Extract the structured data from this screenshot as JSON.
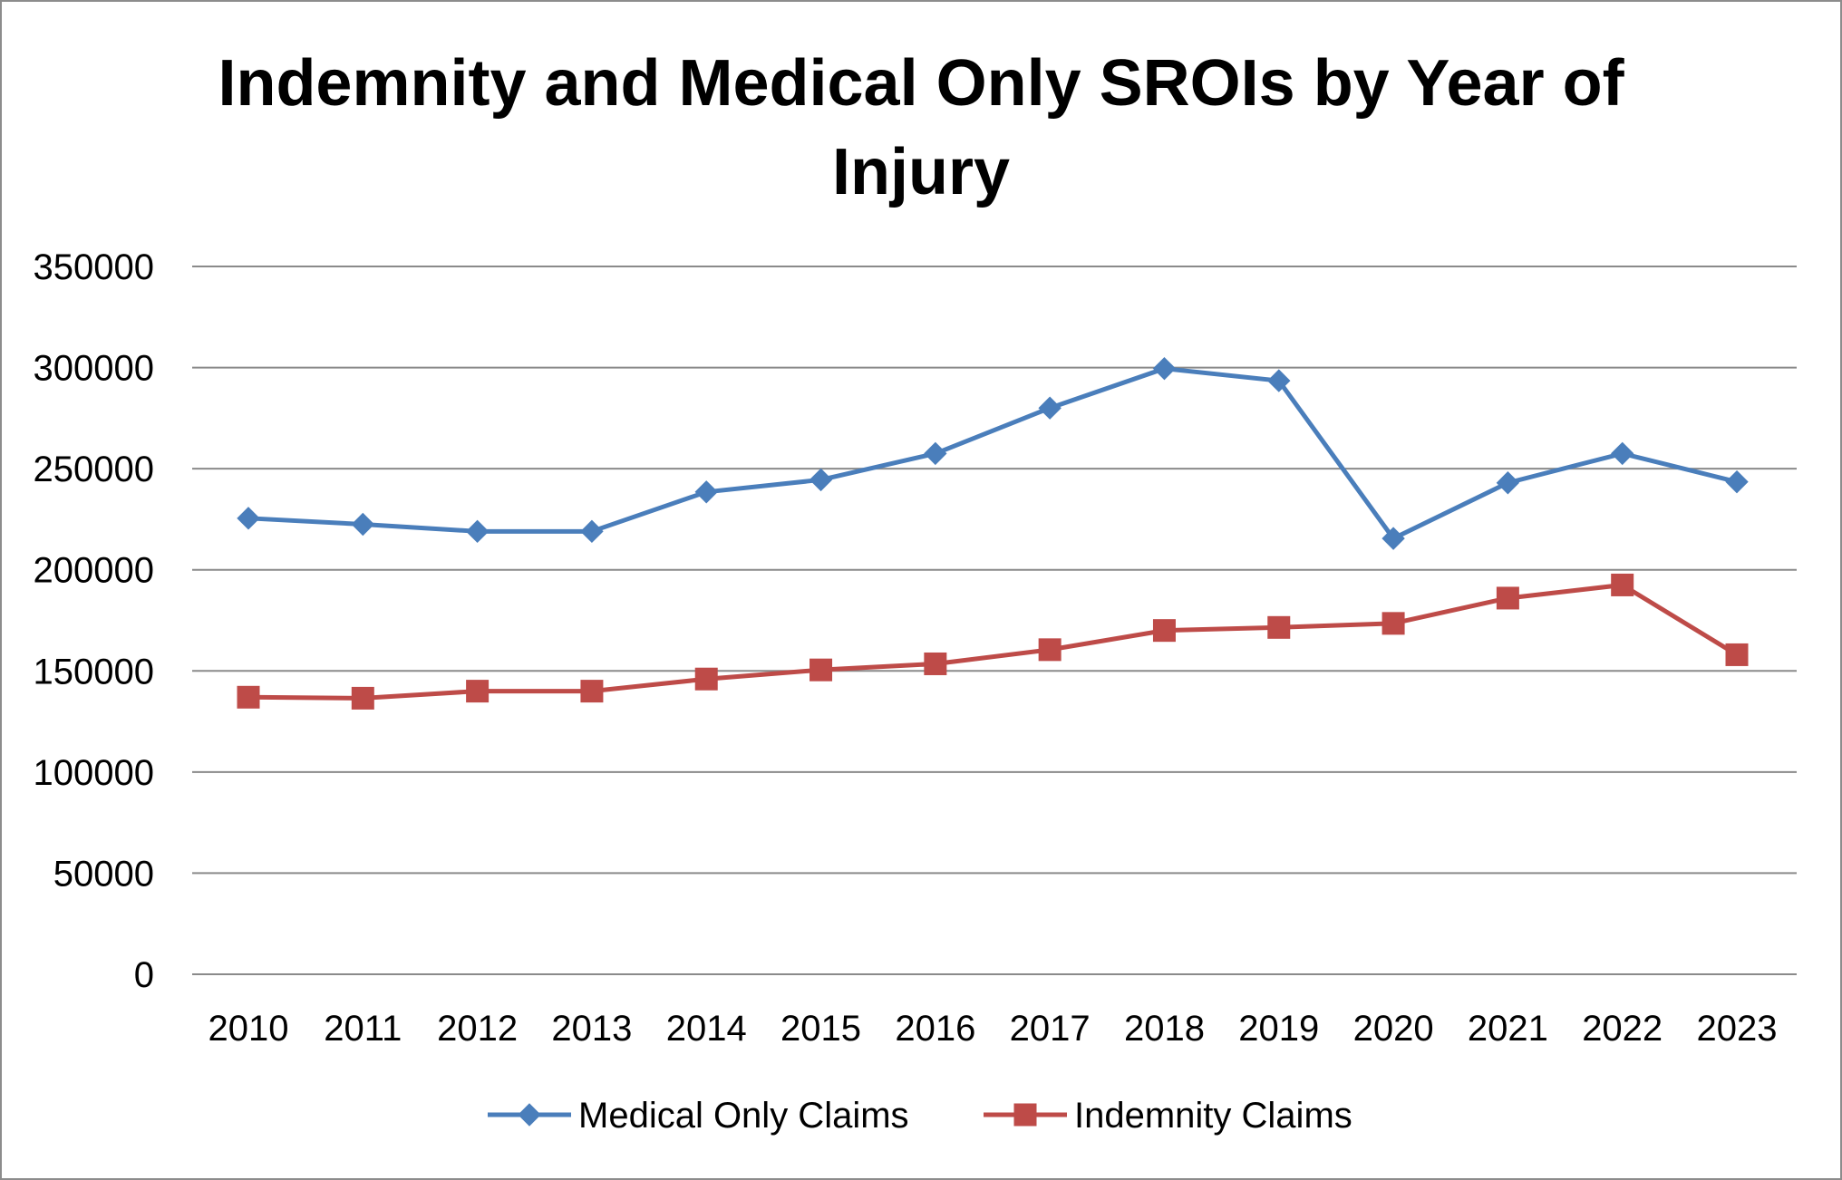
{
  "chart_data": {
    "type": "line",
    "title": "Indemnity and Medical Only SROIs by Year of Injury",
    "title_lines": [
      "Indemnity and Medical Only SROIs by Year of",
      "Injury"
    ],
    "xlabel": "",
    "ylabel": "",
    "categories": [
      "2010",
      "2011",
      "2012",
      "2013",
      "2014",
      "2015",
      "2016",
      "2017",
      "2018",
      "2019",
      "2020",
      "2021",
      "2022",
      "2023"
    ],
    "ylim": [
      0,
      350000
    ],
    "yticks": [
      0,
      50000,
      100000,
      150000,
      200000,
      250000,
      300000,
      350000
    ],
    "ytick_labels": [
      "0",
      "50000",
      "100000",
      "150000",
      "200000",
      "250000",
      "300000",
      "350000"
    ],
    "grid": true,
    "legend_position": "bottom",
    "series": [
      {
        "name": "Medical Only Claims",
        "color": "#4a7ebb",
        "marker": "diamond",
        "values": [
          225500,
          222500,
          219000,
          219000,
          238500,
          244500,
          257500,
          280000,
          299500,
          293500,
          215500,
          243000,
          257500,
          243500
        ]
      },
      {
        "name": "Indemnity Claims",
        "color": "#be4b48",
        "marker": "square",
        "values": [
          137000,
          136500,
          140000,
          140000,
          146000,
          150500,
          153500,
          160500,
          170000,
          171500,
          173500,
          186000,
          192500,
          158000
        ]
      }
    ]
  }
}
